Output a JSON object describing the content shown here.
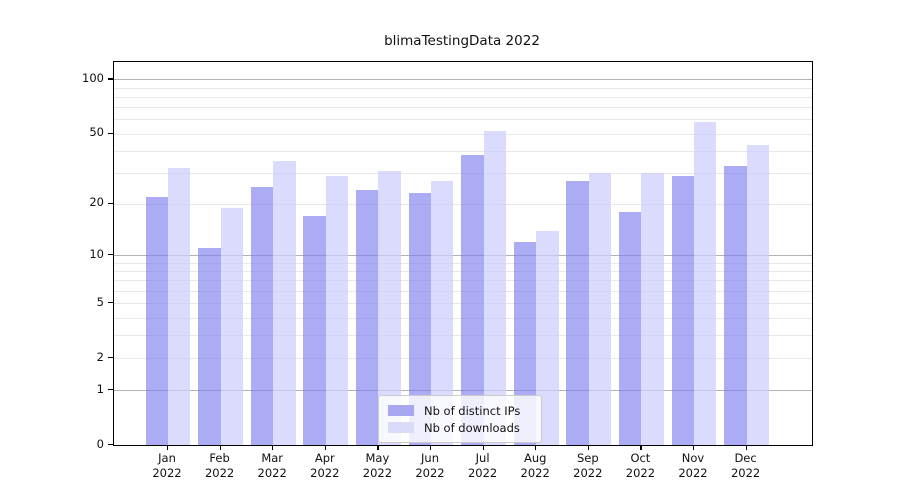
{
  "chart_data": {
    "type": "bar",
    "title": "blimaTestingData 2022",
    "categories": [
      "Jan",
      "Feb",
      "Mar",
      "Apr",
      "May",
      "Jun",
      "Jul",
      "Aug",
      "Sep",
      "Oct",
      "Nov",
      "Dec"
    ],
    "category_year": "2022",
    "series": [
      {
        "name": "Nb of distinct IPs",
        "values": [
          22,
          11,
          25,
          17,
          24,
          23,
          38,
          12,
          27,
          18,
          29,
          33
        ],
        "bar_color": "rgba(125,125,238,0.64)",
        "legend_color": "#a7a7f2"
      },
      {
        "name": "Nb of downloads",
        "values": [
          32,
          19,
          35,
          29,
          31,
          27,
          52,
          14,
          30,
          30,
          58,
          43
        ],
        "bar_color": "rgba(205,205,252,0.72)",
        "legend_color": "#dadaf9"
      }
    ],
    "yscale": "log1p",
    "ylim": [
      0,
      125
    ],
    "ytick_values": [
      100,
      50,
      20,
      10,
      5,
      2,
      1,
      0
    ],
    "major_gridline_values": [
      1,
      10,
      100
    ],
    "minor_gridline_values": [
      2,
      3,
      4,
      5,
      6,
      7,
      8,
      9,
      20,
      30,
      40,
      50,
      60,
      70,
      80,
      90
    ],
    "grid": true,
    "legend_position": "lower center",
    "colors": {
      "major_grid": "#b2b2b2",
      "minor_grid": "#e8e8e8",
      "spine": "#000000",
      "text": "#111111"
    }
  }
}
